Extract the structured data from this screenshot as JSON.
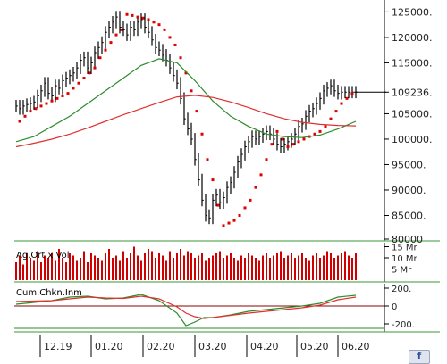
{
  "colors": {
    "price": "#000000",
    "sar": "#e00000",
    "ma_short": "#2e8b2e",
    "ma_long": "#e03030",
    "volume": "#d00000",
    "panel_border": "#3a9a3a",
    "last_price_line": "#000000",
    "osc_zero": "#8b0000",
    "osc_band": "#2e8b2e"
  },
  "corner_icon": "chart-settings-icon",
  "chart_data": [
    {
      "type": "line",
      "panel": "price",
      "ylim": [
        80000,
        127000
      ],
      "y_ticks": [
        "125000.",
        "120000.",
        "115000.",
        "109236.",
        "105000.",
        "100000.",
        "95000.",
        "90000.",
        "85000.",
        "80000"
      ],
      "last_value_label": "109236.",
      "x_ticks": [
        "12.19",
        "01.20",
        "02.20",
        "03.20",
        "04.20",
        "05.20",
        "06.20"
      ],
      "series": [
        {
          "role": "price_candles",
          "x": [
            0,
            2,
            4,
            6,
            8,
            10,
            12,
            14,
            16,
            18,
            20,
            22,
            24,
            26,
            28,
            30,
            32,
            34,
            36,
            38,
            40,
            42,
            44,
            46,
            48,
            50,
            52,
            54,
            56,
            58,
            60,
            62,
            64,
            66,
            68,
            70,
            72,
            74,
            76,
            78,
            80,
            82,
            84,
            86,
            88,
            90,
            92,
            94,
            96,
            98,
            100,
            102,
            104,
            106,
            108,
            110,
            112,
            114,
            116,
            118,
            120,
            122,
            124,
            126,
            128,
            130,
            132,
            134,
            136,
            138,
            140,
            142,
            144,
            146,
            148,
            150,
            152,
            154,
            156,
            158,
            160,
            162,
            164,
            166,
            168,
            170,
            172,
            174,
            176,
            178,
            180,
            182,
            184,
            186,
            188,
            190
          ],
          "values": [
            106500,
            106000,
            106500,
            106800,
            107000,
            107300,
            108500,
            109500,
            111000,
            109000,
            108500,
            110500,
            110000,
            111500,
            112000,
            112500,
            113000,
            114000,
            115500,
            116000,
            114000,
            115000,
            117000,
            118000,
            119000,
            121000,
            122000,
            123000,
            124000,
            122000,
            121500,
            120500,
            122000,
            121500,
            123000,
            123500,
            122000,
            121000,
            119500,
            118000,
            117500,
            116500,
            115500,
            114000,
            112500,
            111000,
            108000,
            104000,
            102000,
            100000,
            96000,
            92000,
            88000,
            85000,
            84500,
            88000,
            89000,
            87500,
            88500,
            90500,
            91500,
            93500,
            95500,
            97000,
            98500,
            99500,
            100500,
            100000,
            100500,
            101000,
            101500,
            101000,
            100000,
            99000,
            98500,
            99000,
            99500,
            100000,
            101000,
            102500,
            103000,
            104500,
            105500,
            106000,
            107000,
            108000,
            109500,
            110000,
            110500,
            109500,
            109000,
            109236,
            109236,
            109236,
            109236,
            109236
          ]
        },
        {
          "role": "parabolic_sar",
          "x": [
            2,
            5,
            8,
            11,
            14,
            17,
            20,
            23,
            26,
            29,
            32,
            35,
            38,
            41,
            44,
            47,
            50,
            53,
            56,
            59,
            62,
            65,
            68,
            71,
            74,
            77,
            80,
            83,
            86,
            89,
            92,
            95,
            98,
            101,
            104,
            107,
            110,
            113,
            116,
            119,
            122,
            125,
            128,
            131,
            134,
            137,
            140,
            143,
            146,
            149,
            152,
            155,
            158,
            161,
            164,
            167,
            170,
            173,
            176,
            179,
            182,
            185,
            188
          ],
          "values": [
            103500,
            104500,
            105500,
            106000,
            106500,
            107000,
            107500,
            108000,
            108500,
            109000,
            110000,
            111000,
            112000,
            113000,
            114000,
            116000,
            117500,
            119000,
            120500,
            121500,
            124500,
            124300,
            124000,
            123800,
            123500,
            123000,
            122500,
            121500,
            120000,
            118500,
            116000,
            113000,
            109500,
            105500,
            101000,
            96000,
            92000,
            87000,
            83000,
            83500,
            84000,
            85000,
            86500,
            88000,
            90500,
            93000,
            96000,
            99000,
            101500,
            100000,
            98500,
            99000,
            99500,
            100000,
            100500,
            101000,
            101500,
            102500,
            104000,
            105500,
            107000,
            108000,
            109000
          ]
        },
        {
          "role": "moving_average_short",
          "x": [
            0,
            10,
            20,
            30,
            40,
            50,
            60,
            70,
            80,
            90,
            100,
            110,
            120,
            130,
            140,
            150,
            160,
            170,
            180,
            190
          ],
          "values": [
            99500,
            100500,
            102500,
            104500,
            107000,
            109500,
            112000,
            114500,
            115800,
            115000,
            111500,
            107500,
            104500,
            102500,
            101000,
            100500,
            100300,
            100800,
            102000,
            103500
          ]
        },
        {
          "role": "moving_average_long",
          "x": [
            0,
            10,
            20,
            30,
            40,
            50,
            60,
            70,
            80,
            90,
            100,
            110,
            120,
            130,
            140,
            150,
            160,
            170,
            180,
            190
          ],
          "values": [
            98500,
            99200,
            100000,
            101000,
            102200,
            103500,
            104800,
            106000,
            107200,
            108300,
            108600,
            108200,
            107300,
            106200,
            105000,
            104000,
            103300,
            102900,
            102700,
            102600
          ]
        }
      ]
    },
    {
      "type": "bar",
      "panel": "volume",
      "label": "Ag.Ort x Vol",
      "y_ticks": [
        "15 Mr",
        "10 Mr",
        "5 Mr"
      ],
      "x": [
        0,
        2,
        4,
        6,
        8,
        10,
        12,
        14,
        16,
        18,
        20,
        22,
        24,
        26,
        28,
        30,
        32,
        34,
        36,
        38,
        40,
        42,
        44,
        46,
        48,
        50,
        52,
        54,
        56,
        58,
        60,
        62,
        64,
        66,
        68,
        70,
        72,
        74,
        76,
        78,
        80,
        82,
        84,
        86,
        88,
        90,
        92,
        94,
        96,
        98,
        100,
        102,
        104,
        106,
        108,
        110,
        112,
        114,
        116,
        118,
        120,
        122,
        124,
        126,
        128,
        130,
        132,
        134,
        136,
        138,
        140,
        142,
        144,
        146,
        148,
        150,
        152,
        154,
        156,
        158,
        160,
        162,
        164,
        166,
        168,
        170,
        172,
        174,
        176,
        178,
        180,
        182,
        184,
        186,
        188,
        190
      ],
      "values": [
        8,
        11,
        7,
        12,
        10,
        9,
        13,
        8,
        11,
        10,
        12,
        9,
        14,
        10,
        8,
        12,
        11,
        9,
        10,
        13,
        8,
        12,
        11,
        10,
        9,
        12,
        14,
        10,
        11,
        9,
        13,
        10,
        12,
        15,
        11,
        9,
        12,
        14,
        13,
        10,
        12,
        11,
        9,
        13,
        10,
        12,
        14,
        11,
        13,
        12,
        10,
        11,
        12,
        9,
        10,
        11,
        12,
        13,
        10,
        11,
        12,
        10,
        9,
        11,
        10,
        12,
        11,
        10,
        9,
        11,
        12,
        10,
        11,
        12,
        13,
        10,
        11,
        12,
        10,
        11,
        12,
        10,
        9,
        11,
        12,
        10,
        11,
        13,
        12,
        10,
        11,
        12,
        13,
        11,
        10,
        12
      ]
    },
    {
      "type": "line",
      "panel": "oscillator",
      "label": "Cum.Chkn.Inm",
      "ylim": [
        -270,
        230
      ],
      "y_ticks": [
        "200.",
        "0",
        "-200."
      ],
      "x": [
        0,
        10,
        20,
        30,
        40,
        50,
        60,
        70,
        80,
        90,
        95,
        100,
        105,
        110,
        120,
        130,
        140,
        150,
        160,
        170,
        180,
        190
      ],
      "series": [
        {
          "role": "oscillator_fast",
          "values": [
            20,
            40,
            60,
            100,
            110,
            80,
            90,
            130,
            60,
            -80,
            -220,
            -180,
            -130,
            -130,
            -100,
            -60,
            -40,
            -20,
            0,
            30,
            100,
            120
          ]
        },
        {
          "role": "oscillator_signal",
          "values": [
            50,
            55,
            60,
            80,
            100,
            90,
            85,
            110,
            80,
            -10,
            -80,
            -120,
            -140,
            -130,
            -105,
            -80,
            -60,
            -40,
            -20,
            10,
            70,
            100
          ]
        }
      ]
    }
  ]
}
